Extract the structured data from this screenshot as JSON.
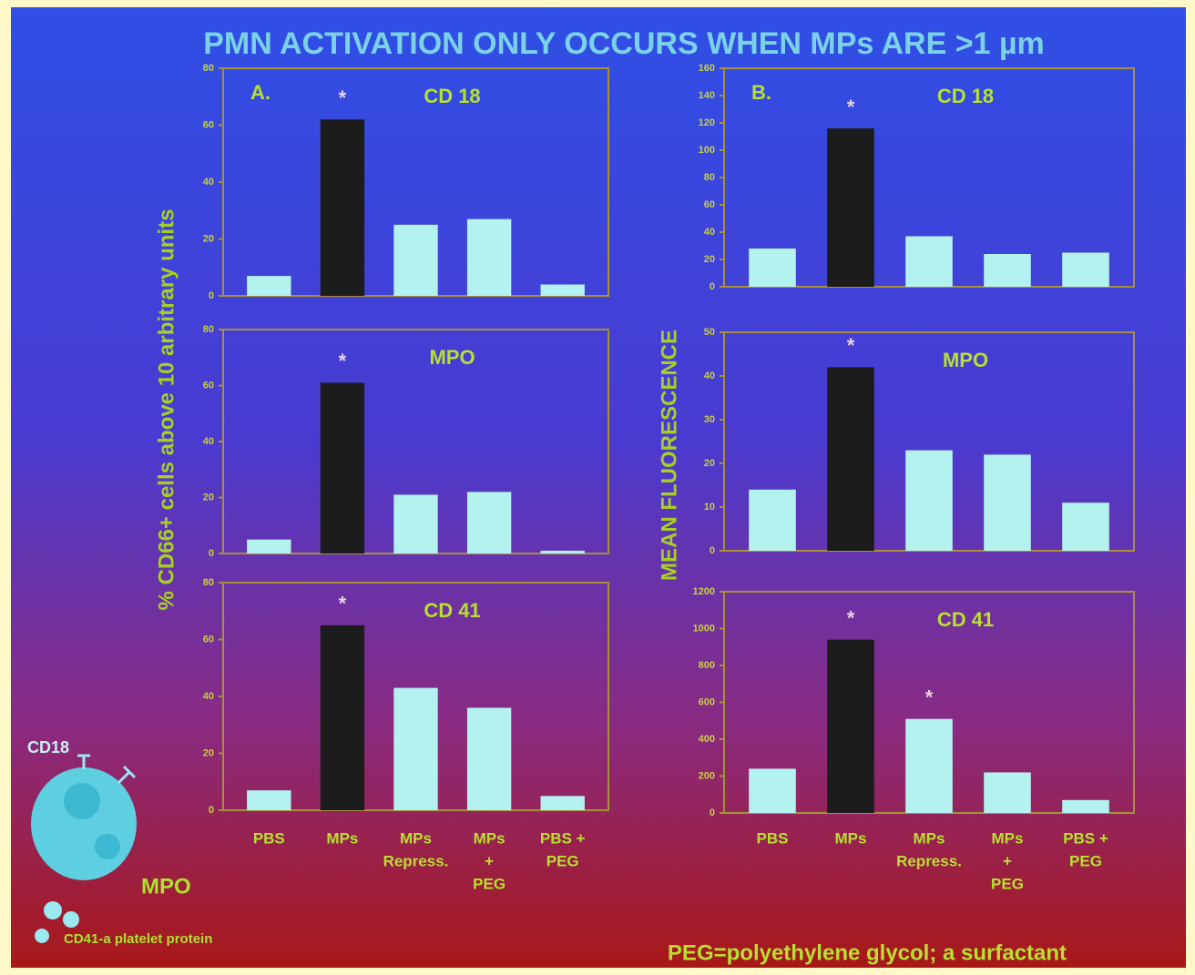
{
  "header": {
    "title": "PMN ACTIVATION ONLY OCCURS WHEN MPs ARE >1 µm",
    "ylabel_left": "% CD66+ cells above 10 arbitrary units",
    "ylabel_right": "MEAN FLUORESCENCE",
    "footnote": "PEG=polyethylene glycol; a surfactant"
  },
  "illustration": {
    "receptor": "CD18",
    "granule": "MPO",
    "platelet": "CD41-a platelet protein"
  },
  "chart_data": [
    {
      "type": "bar",
      "panel": "A.",
      "title": "CD 18",
      "values": [
        7,
        62,
        25,
        27,
        4
      ],
      "colors": [
        "#b4f2f0",
        "#1c1c1c",
        "#b4f2f0",
        "#b4f2f0",
        "#b4f2f0"
      ],
      "ylim": [
        0,
        80
      ],
      "yticks": [
        0,
        20,
        40,
        60,
        80
      ],
      "annotations": [
        {
          "label": "*",
          "at": 1
        }
      ]
    },
    {
      "type": "bar",
      "title": "MPO",
      "values": [
        5,
        61,
        21,
        22,
        1
      ],
      "colors": [
        "#b4f2f0",
        "#1c1c1c",
        "#b4f2f0",
        "#b4f2f0",
        "#b4f2f0"
      ],
      "ylim": [
        0,
        80
      ],
      "yticks": [
        0,
        20,
        40,
        60,
        80
      ],
      "annotations": [
        {
          "label": "*",
          "at": 1
        }
      ]
    },
    {
      "type": "bar",
      "title": "CD 41",
      "categories": [
        [
          "PBS"
        ],
        [
          "MPs"
        ],
        [
          "MPs",
          "Repress."
        ],
        [
          "MPs",
          "+",
          "PEG"
        ],
        [
          "PBS +",
          "PEG"
        ]
      ],
      "values": [
        7,
        65,
        43,
        36,
        5
      ],
      "colors": [
        "#b4f2f0",
        "#1c1c1c",
        "#b4f2f0",
        "#b4f2f0",
        "#b4f2f0"
      ],
      "ylim": [
        0,
        80
      ],
      "yticks": [
        0,
        20,
        40,
        60,
        80
      ],
      "annotations": [
        {
          "label": "*",
          "at": 1
        }
      ]
    },
    {
      "type": "bar",
      "panel": "B.",
      "title": "CD 18",
      "values": [
        28,
        116,
        37,
        24,
        25
      ],
      "colors": [
        "#b4f2f0",
        "#1c1c1c",
        "#b4f2f0",
        "#b4f2f0",
        "#b4f2f0"
      ],
      "ylim": [
        0,
        160
      ],
      "yticks": [
        0,
        20,
        40,
        60,
        80,
        100,
        120,
        140,
        160
      ],
      "annotations": [
        {
          "label": "*",
          "at": 1
        }
      ]
    },
    {
      "type": "bar",
      "title": "MPO",
      "values": [
        14,
        42,
        23,
        22,
        11
      ],
      "colors": [
        "#b4f2f0",
        "#1c1c1c",
        "#b4f2f0",
        "#b4f2f0",
        "#b4f2f0"
      ],
      "ylim": [
        0,
        50
      ],
      "yticks": [
        0,
        10,
        20,
        30,
        40,
        50
      ],
      "annotations": [
        {
          "label": "*",
          "at": 1
        }
      ]
    },
    {
      "type": "bar",
      "title": "CD 41",
      "categories": [
        [
          "PBS"
        ],
        [
          "MPs"
        ],
        [
          "MPs",
          "Repress."
        ],
        [
          "MPs",
          "+",
          "PEG"
        ],
        [
          "PBS +",
          "PEG"
        ]
      ],
      "values": [
        240,
        940,
        510,
        220,
        70
      ],
      "colors": [
        "#b4f2f0",
        "#1c1c1c",
        "#b4f2f0",
        "#b4f2f0",
        "#b4f2f0"
      ],
      "ylim": [
        0,
        1200
      ],
      "yticks": [
        0,
        200,
        400,
        600,
        800,
        1000,
        1200
      ],
      "annotations": [
        {
          "label": "*",
          "at": 1
        },
        {
          "label": "*",
          "at": 2
        }
      ]
    }
  ]
}
